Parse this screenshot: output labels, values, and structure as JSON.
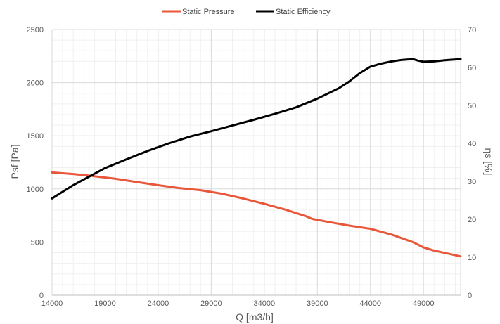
{
  "chart_data": {
    "type": "line",
    "title": "",
    "xlabel": "Q [m3/h]",
    "ylabel": "Psf [Pa]",
    "y2label": "ηs [%]",
    "xlim": [
      14000,
      52500
    ],
    "ylim": [
      0,
      2500
    ],
    "y2lim": [
      0,
      70
    ],
    "x_ticks": [
      "14000",
      "19000",
      "24000",
      "29000",
      "34000",
      "39000",
      "44000",
      "49000"
    ],
    "y_ticks": [
      "0",
      "500",
      "1000",
      "1500",
      "2000",
      "2500"
    ],
    "y2_ticks": [
      "0",
      "10",
      "20",
      "30",
      "40",
      "50",
      "60",
      "70"
    ],
    "grid": true,
    "legend_position": "top",
    "series": [
      {
        "name": "Static Pressure",
        "axis": "left",
        "color": "#e8573a",
        "x": [
          14000,
          16000,
          18000,
          20000,
          22000,
          24000,
          26000,
          28000,
          30000,
          32000,
          34000,
          36000,
          38000,
          38500,
          40000,
          42000,
          44000,
          46000,
          48000,
          49000,
          50000,
          52500
        ],
        "y": [
          1155,
          1140,
          1120,
          1095,
          1065,
          1035,
          1008,
          988,
          955,
          910,
          860,
          805,
          740,
          718,
          690,
          655,
          625,
          570,
          500,
          450,
          420,
          365
        ]
      },
      {
        "name": "Static Efficiency",
        "axis": "right",
        "color": "#000000",
        "x": [
          14000,
          16000,
          18000,
          19000,
          21000,
          23000,
          25000,
          27000,
          29000,
          31000,
          33000,
          35000,
          37000,
          39000,
          41000,
          42000,
          43000,
          44000,
          45000,
          46000,
          47000,
          48000,
          48500,
          49000,
          50000,
          51000,
          52500
        ],
        "y": [
          25.5,
          29.0,
          32.0,
          33.5,
          35.8,
          38.0,
          40.0,
          41.8,
          43.2,
          44.7,
          46.2,
          47.8,
          49.5,
          51.8,
          54.5,
          56.3,
          58.5,
          60.2,
          61.0,
          61.6,
          62.0,
          62.2,
          61.8,
          61.5,
          61.6,
          61.9,
          62.2
        ]
      }
    ]
  }
}
